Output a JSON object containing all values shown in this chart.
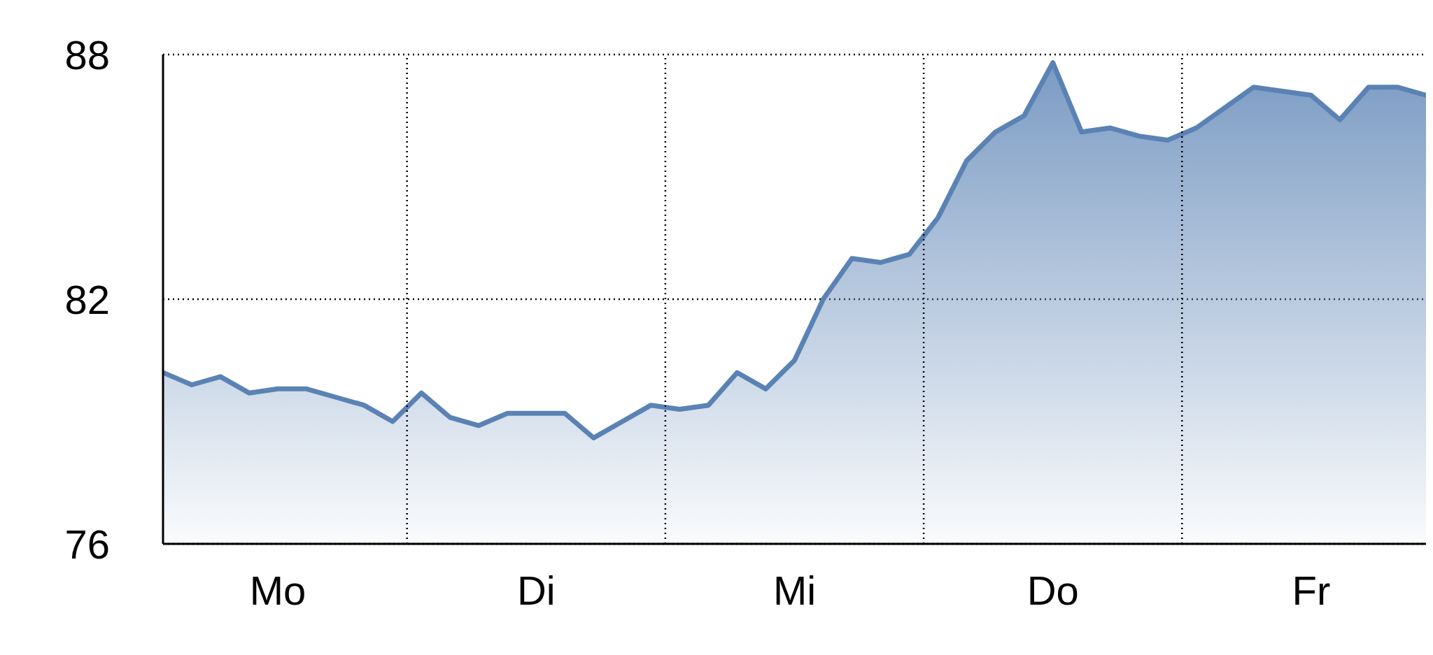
{
  "chart_data": {
    "type": "area",
    "categories": [
      null,
      null,
      null,
      null,
      "Mo",
      null,
      null,
      null,
      null,
      null,
      null,
      null,
      null,
      "Di",
      null,
      null,
      null,
      null,
      null,
      null,
      null,
      null,
      "Mi",
      null,
      null,
      null,
      null,
      null,
      null,
      null,
      null,
      "Do",
      null,
      null,
      null,
      null,
      null,
      null,
      null,
      null,
      "Fr",
      null,
      null,
      null,
      null
    ],
    "series": [
      {
        "color": "#5a82b4",
        "values": [
          80.2,
          79.9,
          80.1,
          79.7,
          79.8,
          79.8,
          79.6,
          79.4,
          79.0,
          79.7,
          79.1,
          78.9,
          79.2,
          79.2,
          79.2,
          78.6,
          79.0,
          79.4,
          79.3,
          79.4,
          80.2,
          79.8,
          80.5,
          82.0,
          83.0,
          82.9,
          83.1,
          84.0,
          85.4,
          86.1,
          86.5,
          87.8,
          86.1,
          86.2,
          86.0,
          85.9,
          86.2,
          86.7,
          87.2,
          87.1,
          87.0,
          86.4,
          87.2,
          87.2,
          87.0
        ]
      }
    ],
    "ylim": [
      76,
      88
    ],
    "yticks": [
      76,
      82,
      88
    ],
    "grid": true
  }
}
